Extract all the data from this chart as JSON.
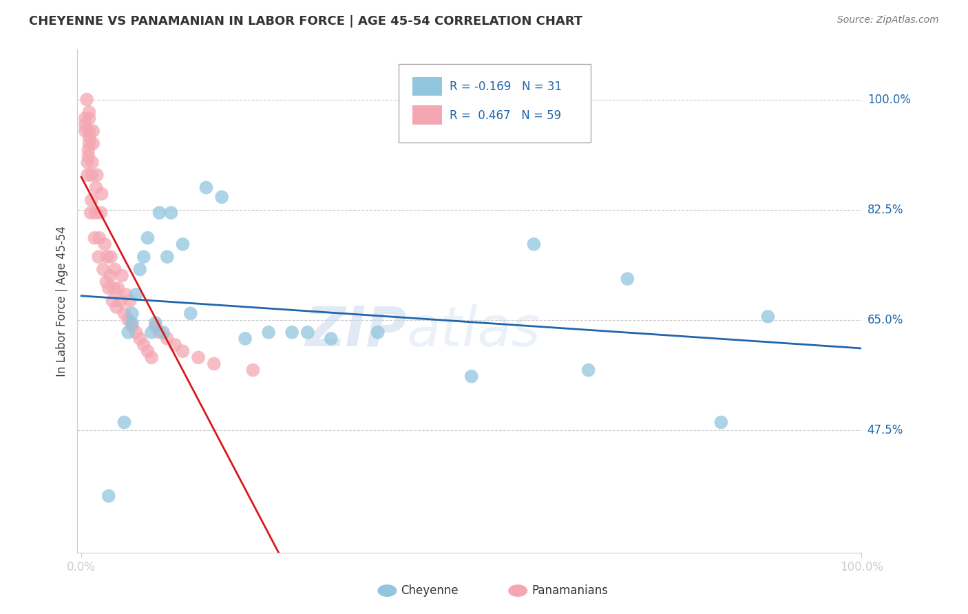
{
  "title": "CHEYENNE VS PANAMANIAN IN LABOR FORCE | AGE 45-54 CORRELATION CHART",
  "source": "Source: ZipAtlas.com",
  "ylabel": "In Labor Force | Age 45-54",
  "xlim": [
    -0.005,
    1.0
  ],
  "ylim": [
    0.28,
    1.08
  ],
  "yticks": [
    0.475,
    0.65,
    0.825,
    1.0
  ],
  "ytick_labels": [
    "47.5%",
    "65.0%",
    "82.5%",
    "100.0%"
  ],
  "xtick_labels": [
    "0.0%",
    "100.0%"
  ],
  "legend_r1": "-0.169",
  "legend_n1": "31",
  "legend_r2": "0.467",
  "legend_n2": "59",
  "cheyenne_color": "#92c5de",
  "panamanian_color": "#f4a7b2",
  "cheyenne_line_color": "#2166ac",
  "panamanian_line_color": "#d6191b",
  "watermark_top": "ZIP",
  "watermark_bot": "atlas",
  "cheyenne_x": [
    0.035,
    0.055,
    0.06,
    0.065,
    0.065,
    0.07,
    0.075,
    0.08,
    0.085,
    0.09,
    0.095,
    0.1,
    0.105,
    0.11,
    0.115,
    0.13,
    0.14,
    0.16,
    0.18,
    0.21,
    0.24,
    0.27,
    0.29,
    0.32,
    0.38,
    0.5,
    0.58,
    0.65,
    0.7,
    0.82,
    0.88
  ],
  "cheyenne_y": [
    0.37,
    0.487,
    0.63,
    0.645,
    0.66,
    0.69,
    0.73,
    0.75,
    0.78,
    0.63,
    0.645,
    0.82,
    0.63,
    0.75,
    0.82,
    0.77,
    0.66,
    0.86,
    0.845,
    0.62,
    0.63,
    0.63,
    0.63,
    0.62,
    0.63,
    0.56,
    0.77,
    0.57,
    0.715,
    0.487,
    0.655
  ],
  "panamanian_x": [
    0.005,
    0.005,
    0.005,
    0.007,
    0.008,
    0.008,
    0.009,
    0.009,
    0.01,
    0.01,
    0.01,
    0.01,
    0.01,
    0.012,
    0.013,
    0.013,
    0.014,
    0.015,
    0.015,
    0.017,
    0.018,
    0.019,
    0.02,
    0.022,
    0.023,
    0.025,
    0.026,
    0.028,
    0.03,
    0.032,
    0.033,
    0.035,
    0.037,
    0.038,
    0.04,
    0.042,
    0.043,
    0.045,
    0.047,
    0.05,
    0.052,
    0.055,
    0.057,
    0.06,
    0.062,
    0.065,
    0.07,
    0.075,
    0.08,
    0.085,
    0.09,
    0.095,
    0.1,
    0.11,
    0.12,
    0.13,
    0.15,
    0.17,
    0.22
  ],
  "panamanian_y": [
    0.95,
    0.96,
    0.97,
    1.0,
    0.88,
    0.9,
    0.91,
    0.92,
    0.93,
    0.94,
    0.95,
    0.97,
    0.98,
    0.82,
    0.84,
    0.88,
    0.9,
    0.93,
    0.95,
    0.78,
    0.82,
    0.86,
    0.88,
    0.75,
    0.78,
    0.82,
    0.85,
    0.73,
    0.77,
    0.71,
    0.75,
    0.7,
    0.72,
    0.75,
    0.68,
    0.7,
    0.73,
    0.67,
    0.7,
    0.68,
    0.72,
    0.66,
    0.69,
    0.65,
    0.68,
    0.64,
    0.63,
    0.62,
    0.61,
    0.6,
    0.59,
    0.64,
    0.63,
    0.62,
    0.61,
    0.6,
    0.59,
    0.58,
    0.57
  ]
}
